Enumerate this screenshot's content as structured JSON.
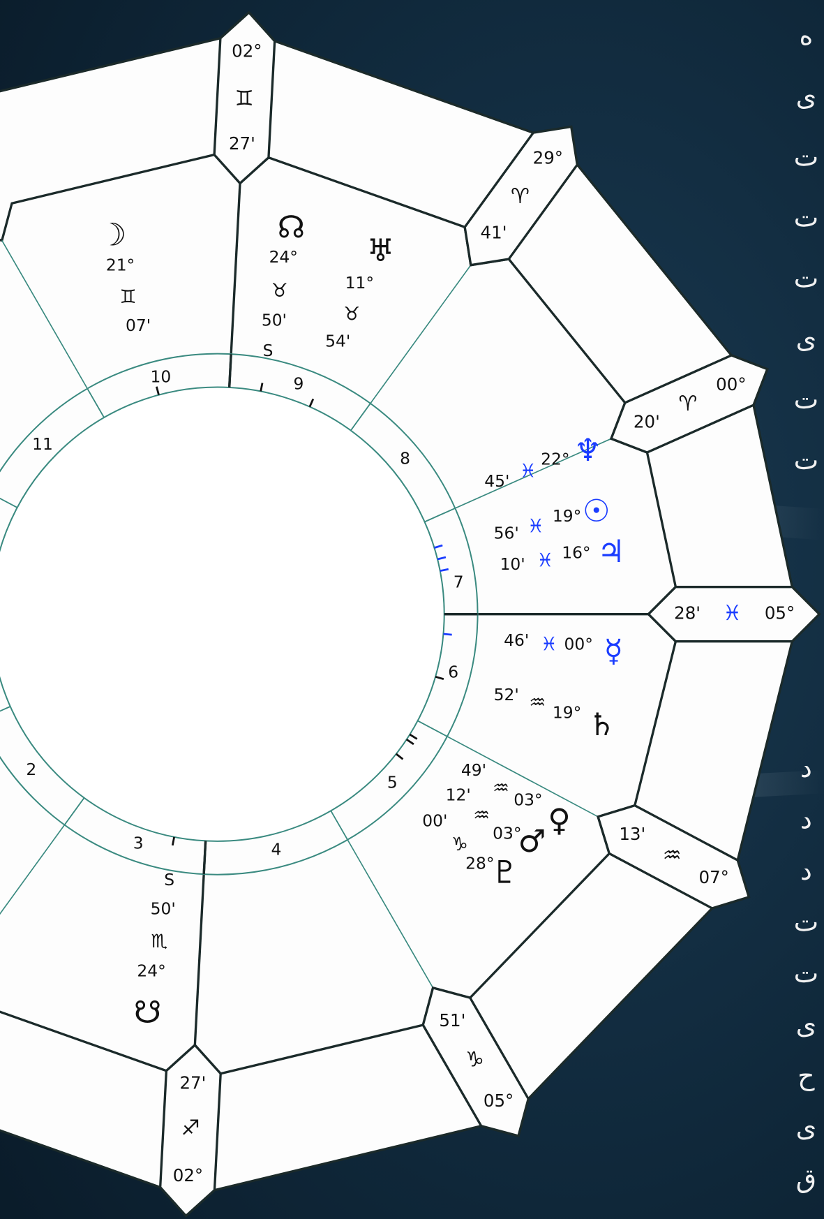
{
  "tabs": [
    {
      "degree": "05°",
      "sign": "♓",
      "minute": "28'",
      "sign_color": "#1a3cff"
    },
    {
      "degree": "00°",
      "sign": "♈",
      "minute": "20'",
      "sign_color": "#111111"
    },
    {
      "degree": "29°",
      "sign": "♈",
      "minute": "41'",
      "sign_color": "#111111"
    },
    {
      "degree": "02°",
      "sign": "♊",
      "minute": "27'",
      "sign_color": "#111111"
    },
    {
      "degree": "02°",
      "sign": "♐",
      "minute": "27'",
      "sign_color": "#111111"
    },
    {
      "degree": "05°",
      "sign": "♑",
      "minute": "51'",
      "sign_color": "#111111"
    },
    {
      "degree": "07°",
      "sign": "♒",
      "minute": "13'",
      "sign_color": "#111111"
    }
  ],
  "houses": [
    "2",
    "3",
    "4",
    "5",
    "6",
    "7",
    "8",
    "9",
    "10",
    "11"
  ],
  "planets": [
    {
      "glyph": "☽",
      "degree": "21°",
      "sign": "♊",
      "minute": "07'",
      "color": "#111111"
    },
    {
      "glyph": "☊",
      "degree": "24°",
      "sign": "♉",
      "minute": "50'",
      "retro": "S",
      "color": "#111111"
    },
    {
      "glyph": "♅",
      "degree": "11°",
      "sign": "♉",
      "minute": "54'",
      "color": "#111111"
    },
    {
      "glyph": "♆",
      "degree": "22°",
      "sign": "♓",
      "minute": "45'",
      "color": "#1a3cff"
    },
    {
      "glyph": "☉",
      "degree": "19°",
      "sign": "♓",
      "minute": "56'",
      "color": "#1a3cff"
    },
    {
      "glyph": "♃",
      "degree": "16°",
      "sign": "♓",
      "minute": "10'",
      "color": "#1a3cff"
    },
    {
      "glyph": "☿",
      "degree": "00°",
      "sign": "♓",
      "minute": "46'",
      "color": "#1a3cff"
    },
    {
      "glyph": "♄",
      "degree": "19°",
      "sign": "♒",
      "minute": "52'",
      "color": "#111111"
    },
    {
      "glyph": "♀",
      "degree": "03°",
      "sign": "♒",
      "minute": "49'",
      "color": "#111111"
    },
    {
      "glyph": "♂",
      "degree": "03°",
      "sign": "♒",
      "minute": "12'",
      "color": "#111111"
    },
    {
      "glyph": "♇",
      "degree": "28°",
      "sign": "♑",
      "minute": "00'",
      "color": "#111111"
    },
    {
      "glyph": "☋",
      "degree": "24°",
      "sign": "♏",
      "minute": "50'",
      "retro": "S",
      "color": "#111111"
    }
  ],
  "side_text": [
    "ه",
    "ی",
    "ت",
    "ت",
    "ت",
    "ی",
    "ت",
    "ت",
    "د",
    "د",
    "د",
    "ت",
    "ت",
    "ی",
    "ح",
    "ی",
    "ق"
  ]
}
